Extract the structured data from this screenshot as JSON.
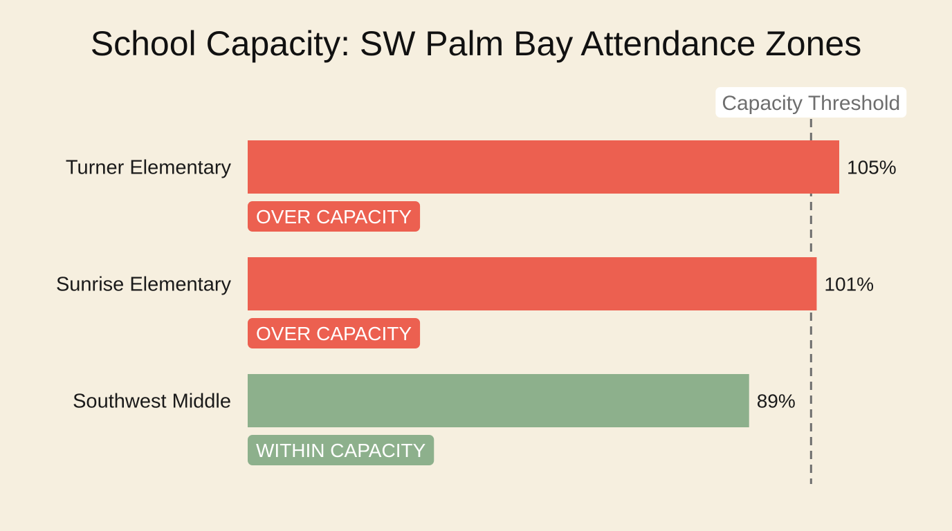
{
  "chart_data": {
    "type": "bar",
    "orientation": "horizontal",
    "title": "School Capacity: SW Palm Bay Attendance Zones",
    "categories": [
      "Turner Elementary",
      "Sunrise Elementary",
      "Southwest Middle"
    ],
    "values": [
      105,
      101,
      89
    ],
    "value_labels": [
      "105%",
      "101%",
      "89%"
    ],
    "unit": "%",
    "status_labels": [
      "OVER CAPACITY",
      "OVER CAPACITY",
      "WITHIN CAPACITY"
    ],
    "status_colors": [
      "#ec6050",
      "#ec6050",
      "#8db08c"
    ],
    "bar_colors": [
      "#ec6050",
      "#ec6050",
      "#8db08c"
    ],
    "threshold": {
      "value": 100,
      "label": "Capacity Threshold",
      "color": "#6e6e6e"
    },
    "xlim": [
      0,
      105
    ],
    "xlabel": "",
    "ylabel": "",
    "grid": false
  }
}
